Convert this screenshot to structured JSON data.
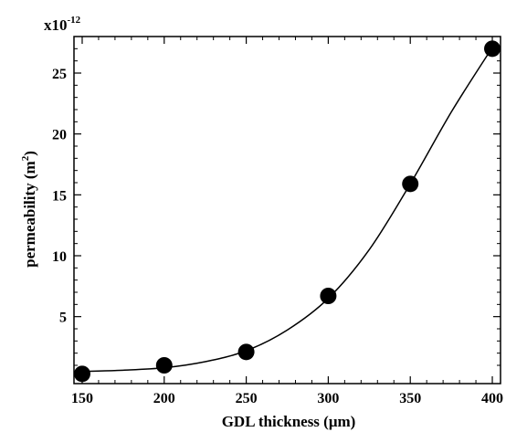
{
  "chart_data": {
    "type": "scatter",
    "title": "",
    "xlabel": "GDL thickness (μm)",
    "ylabel_main": "permeability (m",
    "ylabel_sup": "2",
    "ylabel_close": ")",
    "y_multiplier_base": "x10",
    "y_multiplier_exp": "-12",
    "xlim": [
      145,
      405
    ],
    "ylim": [
      -0.5,
      28
    ],
    "x_ticks": [
      150,
      200,
      250,
      300,
      350,
      400
    ],
    "x_tick_labels": [
      "150",
      "200",
      "250",
      "300",
      "350",
      "400"
    ],
    "y_ticks": [
      5,
      10,
      15,
      20,
      25
    ],
    "y_tick_labels": [
      "5",
      "10",
      "15",
      "20",
      "25"
    ],
    "grid": false,
    "series": [
      {
        "marker": "circle",
        "color": "#000000",
        "x": [
          150,
          200,
          250,
          300,
          350,
          400
        ],
        "y": [
          0.3,
          1.0,
          2.1,
          6.7,
          15.9,
          27.0
        ]
      }
    ],
    "fit_curve": {
      "color": "#000000",
      "x": [
        150,
        175,
        200,
        225,
        250,
        275,
        300,
        325,
        350,
        375,
        400
      ],
      "y": [
        0.5,
        0.6,
        0.8,
        1.3,
        2.2,
        3.9,
        6.5,
        10.5,
        15.9,
        21.8,
        27.1
      ]
    }
  }
}
